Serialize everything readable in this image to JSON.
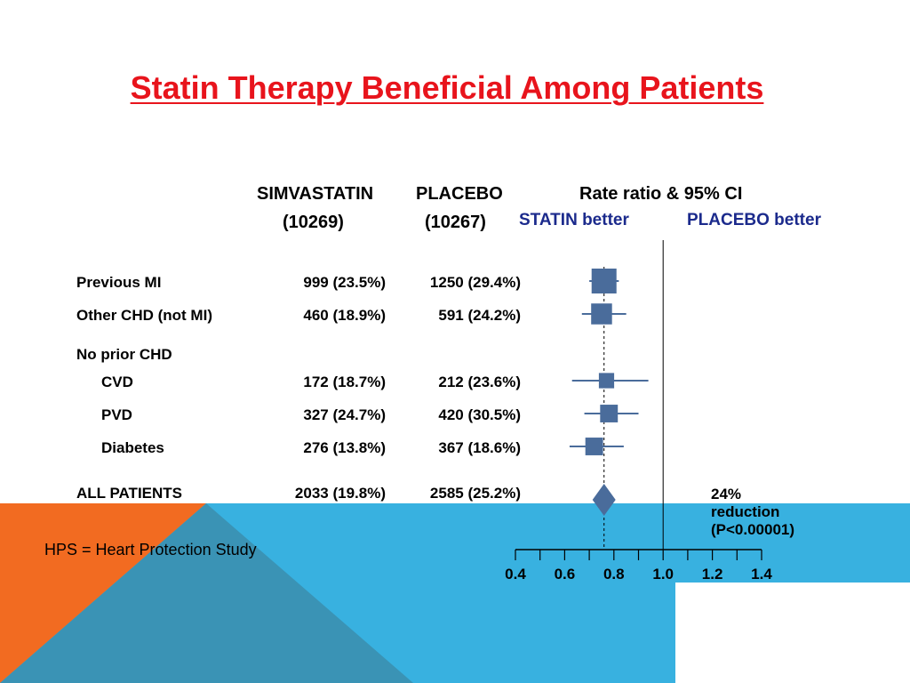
{
  "slide": {
    "title": "Statin Therapy Beneficial Among Patients",
    "footnote": "HPS = Heart Protection Study",
    "colors": {
      "orange": "#f26b21",
      "blue": "#38b1e0",
      "title_red": "#e8141c",
      "marker": "#4a6c9b",
      "label_blue": "#1b2a8c"
    }
  },
  "headers": {
    "simva": "SIMVASTATIN",
    "simva_n": "(10269)",
    "placebo": "PLACEBO",
    "placebo_n": "(10267)",
    "ci": "Rate ratio & 95% CI",
    "statin_better": "STATIN better",
    "placebo_better": "PLACEBO better"
  },
  "rows": [
    {
      "label": "Previous MI",
      "simva": "999 (23.5%)",
      "placebo": "1250 (29.4%)"
    },
    {
      "label": "Other CHD (not MI)",
      "simva": "460 (18.9%)",
      "placebo": "591 (24.2%)"
    },
    {
      "label": "No prior CHD"
    },
    {
      "label": "CVD",
      "simva": "172 (18.7%)",
      "placebo": "212 (23.6%)"
    },
    {
      "label": "PVD",
      "simva": "327 (24.7%)",
      "placebo": "420 (30.5%)"
    },
    {
      "label": "Diabetes",
      "simva": "276 (13.8%)",
      "placebo": "367 (18.6%)"
    },
    {
      "label": "ALL PATIENTS",
      "simva": "2033 (19.8%)",
      "placebo": "2585 (25.2%)"
    }
  ],
  "summary": {
    "line1": "24%",
    "line2": "reduction",
    "line3": "(P<0.00001)"
  },
  "chart_data": {
    "type": "scatter",
    "title": "Rate ratio & 95% CI",
    "xlim": [
      0.4,
      1.4
    ],
    "reference_line": 1.0,
    "tick_labels": [
      "0.4",
      "0.6",
      "0.8",
      "1.0",
      "1.2",
      "1.4"
    ],
    "points": [
      {
        "category": "Previous MI",
        "estimate": 0.76,
        "ci_low": 0.7,
        "ci_high": 0.82,
        "weight": 1.0
      },
      {
        "category": "Other CHD (not MI)",
        "estimate": 0.75,
        "ci_low": 0.67,
        "ci_high": 0.85,
        "weight": 0.75
      },
      {
        "category": "CVD",
        "estimate": 0.77,
        "ci_low": 0.63,
        "ci_high": 0.94,
        "weight": 0.4
      },
      {
        "category": "PVD",
        "estimate": 0.78,
        "ci_low": 0.68,
        "ci_high": 0.9,
        "weight": 0.55
      },
      {
        "category": "Diabetes",
        "estimate": 0.72,
        "ci_low": 0.62,
        "ci_high": 0.84,
        "weight": 0.55
      },
      {
        "category": "ALL PATIENTS",
        "estimate": 0.76,
        "ci_low": 0.72,
        "ci_high": 0.81,
        "diamond": true
      }
    ]
  }
}
